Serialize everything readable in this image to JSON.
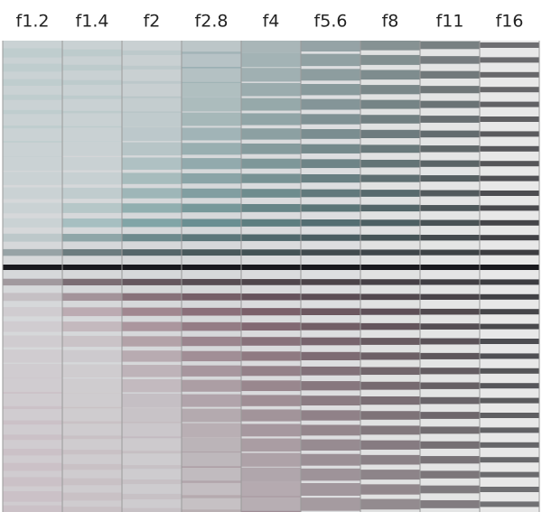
{
  "labels": [
    "f1.2",
    "f1.4",
    "f2",
    "f2.8",
    "f4",
    "f5.6",
    "f8",
    "f11",
    "f16"
  ]
}
